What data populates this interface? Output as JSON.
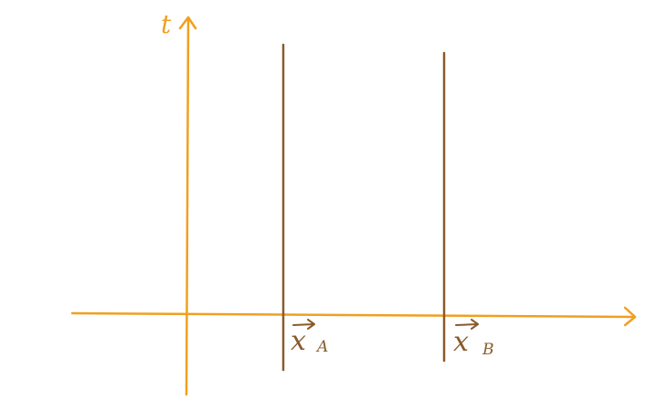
{
  "diagram": {
    "axis_color": "#f0a020",
    "line_color": "#8a5a2b",
    "y_axis_label": "t",
    "worldlines": [
      {
        "base": "x",
        "subscript": "A"
      },
      {
        "base": "x",
        "subscript": "B"
      }
    ]
  }
}
